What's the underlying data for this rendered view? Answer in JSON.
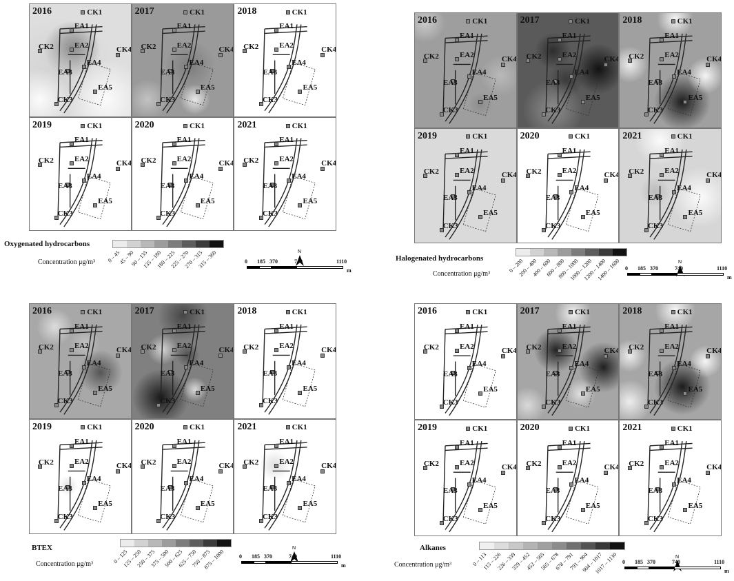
{
  "years": [
    "2016",
    "2017",
    "2018",
    "2019",
    "2020",
    "2021"
  ],
  "stations": [
    "CK1",
    "CK2",
    "CK3",
    "CK4",
    "EA1",
    "EA2",
    "EA3",
    "EA4",
    "EA5"
  ],
  "north_label": "N",
  "scale_unit": "m",
  "conc_label": "Concentration μg/m³",
  "scale_ticks": [
    "0",
    "185",
    "370",
    "740",
    "1110"
  ],
  "panels": [
    {
      "title": "Oxygenated hydrocarbons",
      "ranges": [
        "0 – 45",
        "45 – 90",
        "90 – 135",
        "135 – 180",
        "180 – 225",
        "225 – 270",
        "270 – 315",
        "315 – 360"
      ],
      "colors": [
        "#ececec",
        "#d2d2d2",
        "#b8b8b8",
        "#9c9c9c",
        "#7c7c7c",
        "#5c5c5c",
        "#3a3a3a",
        "#111111"
      ],
      "bg": [
        "#dedede",
        "#9a9a9a",
        "#ffffff",
        "#ffffff",
        "#ffffff",
        "#ffffff"
      ]
    },
    {
      "title": "Halogenated hydrocarbons",
      "ranges": [
        "0 – 200",
        "200 – 400",
        "400 – 600",
        "600 – 800",
        "800 – 1000",
        "1000 – 1200",
        "1200 – 1400",
        "1400 – 1600"
      ],
      "colors": [
        "#ececec",
        "#d2d2d2",
        "#b8b8b8",
        "#9c9c9c",
        "#7c7c7c",
        "#5c5c5c",
        "#3a3a3a",
        "#111111"
      ],
      "bg": [
        "#9e9e9e",
        "#5a5a5a",
        "#a0a0a0",
        "#dadada",
        "#ffffff",
        "#d6d6d6"
      ]
    },
    {
      "title": "BTEX",
      "ranges": [
        "0 – 125",
        "125 – 250",
        "250 – 375",
        "375 – 500",
        "500 – 625",
        "625 – 750",
        "750 – 875",
        "875 – 1000"
      ],
      "colors": [
        "#ececec",
        "#d2d2d2",
        "#b8b8b8",
        "#9c9c9c",
        "#7c7c7c",
        "#5c5c5c",
        "#3a3a3a",
        "#111111"
      ],
      "bg": [
        "#a8a8a8",
        "#808080",
        "#ffffff",
        "#ffffff",
        "#ffffff",
        "#ffffff"
      ]
    },
    {
      "title": "Alkanes",
      "ranges": [
        "0 – 113",
        "113 – 226",
        "226 – 339",
        "339 – 452",
        "452 – 565",
        "565 – 678",
        "678 – 791",
        "791 – 904",
        "904 – 1017",
        "1017 – 1130"
      ],
      "colors": [
        "#f0f0f0",
        "#dcdcdc",
        "#c8c8c8",
        "#b4b4b4",
        "#a0a0a0",
        "#8c8c8c",
        "#707070",
        "#545454",
        "#383838",
        "#111111"
      ],
      "bg": [
        "#ffffff",
        "#a6a6a6",
        "#a6a6a6",
        "#ffffff",
        "#ffffff",
        "#ffffff"
      ]
    }
  ]
}
